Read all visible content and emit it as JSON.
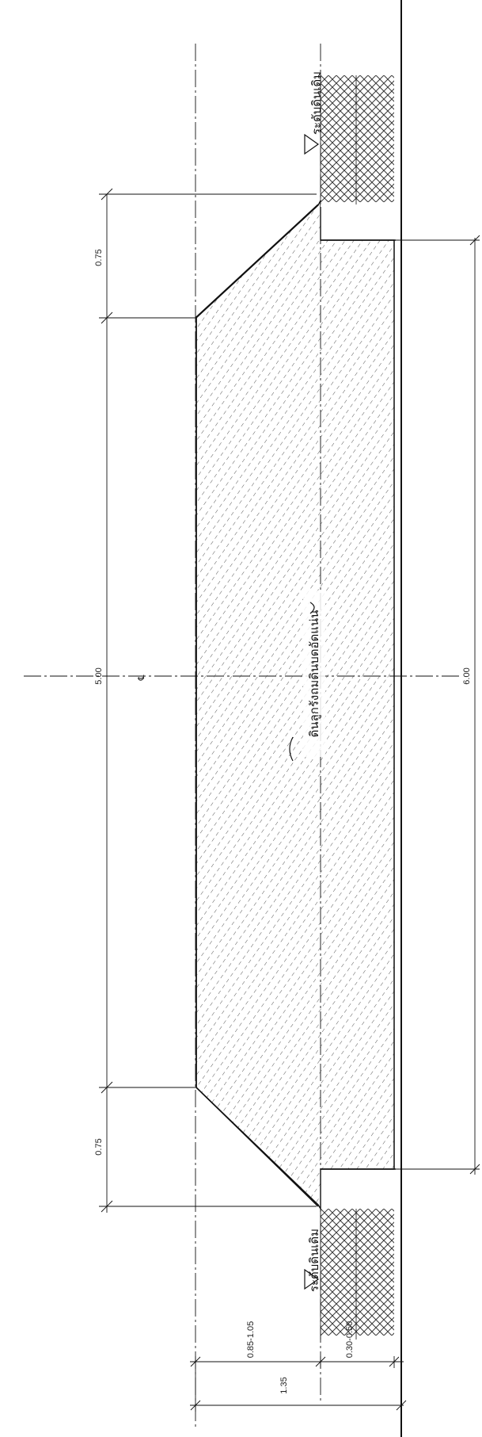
{
  "drawing": {
    "centerline_symbol": "℄",
    "dimensions": {
      "slope_top": "0.75",
      "top_width": "5.00",
      "slope_bottom": "0.75",
      "base_width": "6.00",
      "fill_height": "0.85-1.05",
      "total_height": "1.35",
      "excavation_depth": "0.30-0.50"
    },
    "labels": {
      "fill_material": "ดินลูกรังถมดินบดอัดแน่น",
      "ground_level_top": "ระดับดินเดิม",
      "ground_level_bottom": "ระดับดินเดิม"
    }
  },
  "colors": {
    "line": "#111111",
    "hatch": "#333333",
    "background": "#ffffff"
  }
}
